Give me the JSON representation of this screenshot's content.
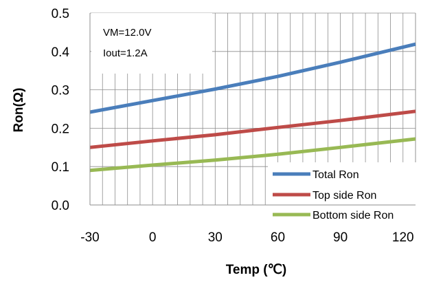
{
  "chart_data": {
    "type": "line",
    "xlabel": "Temp (℃)",
    "ylabel": "Ron(Ω)",
    "xlim": [
      -30,
      126
    ],
    "ylim": [
      0,
      0.5
    ],
    "x_ticks": [
      -30,
      0,
      30,
      60,
      90,
      120
    ],
    "y_ticks": [
      0.0,
      0.1,
      0.2,
      0.3,
      0.4,
      0.5
    ],
    "x_tick_labels": [
      "-30",
      "0",
      "30",
      "60",
      "90",
      "120"
    ],
    "y_tick_labels": [
      "0.0",
      "0.1",
      "0.2",
      "0.3",
      "0.4",
      "0.5"
    ],
    "x_minor_step": 6,
    "grid": true,
    "legend_position": "bottom-right",
    "annotations": [
      "VM=12.0V",
      "Iout=1.2A"
    ],
    "series": [
      {
        "name": "Total Ron",
        "color": "#4a7ebb",
        "x": [
          -30,
          0,
          30,
          60,
          90,
          126
        ],
        "y": [
          0.242,
          0.272,
          0.302,
          0.335,
          0.372,
          0.419
        ]
      },
      {
        "name": "Top side Ron",
        "color": "#be4b48",
        "x": [
          -30,
          0,
          30,
          60,
          90,
          126
        ],
        "y": [
          0.15,
          0.167,
          0.183,
          0.202,
          0.22,
          0.244
        ]
      },
      {
        "name": "Bottom side Ron",
        "color": "#98b954",
        "x": [
          -30,
          0,
          30,
          60,
          90,
          126
        ],
        "y": [
          0.09,
          0.104,
          0.117,
          0.132,
          0.15,
          0.172
        ]
      }
    ]
  }
}
